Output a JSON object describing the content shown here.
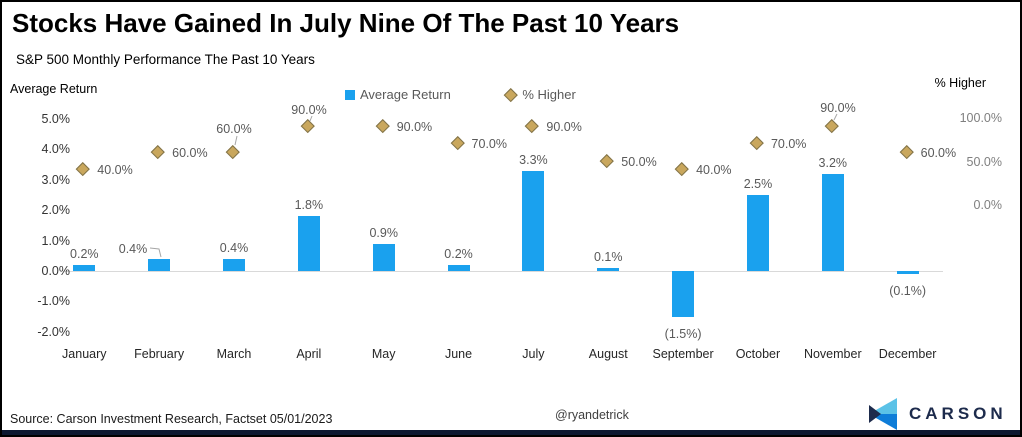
{
  "header": {
    "title": "Stocks Have Gained In July Nine Of The Past 10 Years",
    "subtitle": "S&P 500 Monthly Performance The Past 10 Years"
  },
  "chart_data": {
    "type": "combo-bar-scatter",
    "title": "Stocks Have Gained In July Nine Of The Past 10 Years",
    "subtitle": "S&P 500 Monthly Performance The Past 10 Years",
    "categories": [
      "January",
      "February",
      "March",
      "April",
      "May",
      "June",
      "July",
      "August",
      "September",
      "October",
      "November",
      "December"
    ],
    "series": [
      {
        "name": "Average Return",
        "type": "bar",
        "axis": "left",
        "unit": "%",
        "values": [
          0.2,
          0.4,
          0.4,
          1.8,
          0.9,
          0.2,
          3.3,
          0.1,
          -1.5,
          2.5,
          3.2,
          -0.1
        ],
        "labels": [
          "0.2%",
          "0.4%",
          "0.4%",
          "1.8%",
          "0.9%",
          "0.2%",
          "3.3%",
          "0.1%",
          "(1.5%)",
          "2.5%",
          "3.2%",
          "(0.1%)"
        ]
      },
      {
        "name": "% Higher",
        "type": "scatter",
        "marker": "diamond",
        "axis": "right",
        "unit": "%",
        "values": [
          40,
          60,
          60,
          90,
          90,
          70,
          90,
          50,
          40,
          70,
          90,
          60
        ],
        "labels": [
          "40.0%",
          "60.0%",
          "60.0%",
          "90.0%",
          "90.0%",
          "70.0%",
          "50.0%",
          "40.0%",
          "70.0%",
          "90.0%",
          "60.0%"
        ],
        "labels_full": [
          "40.0%",
          "60.0%",
          "60.0%",
          "90.0%",
          "90.0%",
          "70.0%",
          "90.0%",
          "50.0%",
          "40.0%",
          "70.0%",
          "90.0%",
          "60.0%"
        ]
      }
    ],
    "left_axis": {
      "title": "Average Return",
      "range": [
        -2,
        5
      ],
      "ticks": [
        5,
        4,
        3,
        2,
        1,
        0,
        -1,
        -2
      ],
      "tick_labels": [
        "5.0%",
        "4.0%",
        "3.0%",
        "2.0%",
        "1.0%",
        "0.0%",
        "-1.0%",
        "-2.0%"
      ]
    },
    "right_axis": {
      "title": "% Higher",
      "range": [
        0,
        100
      ],
      "ticks": [
        100,
        50,
        0
      ],
      "tick_labels": [
        "100.0%",
        "50.0%",
        "0.0%"
      ]
    },
    "grid": false,
    "legend_position": "top-center"
  },
  "footer": {
    "source": "Source: Carson Investment Research, Factset 05/01/2023",
    "handle": "@ryandetrick",
    "brand": "CARSON"
  },
  "colors": {
    "bar": "#1AA1EE",
    "diamond_fill": "#C9A75D",
    "diamond_border": "#80734A",
    "data_label": "#595959",
    "axis_line": "#D9D9D9",
    "footer_bar": "#0D1830",
    "brand_navy": "#1D2B4C",
    "logo_light_blue": "#5BC2E7",
    "logo_blue": "#0E7DD8"
  }
}
